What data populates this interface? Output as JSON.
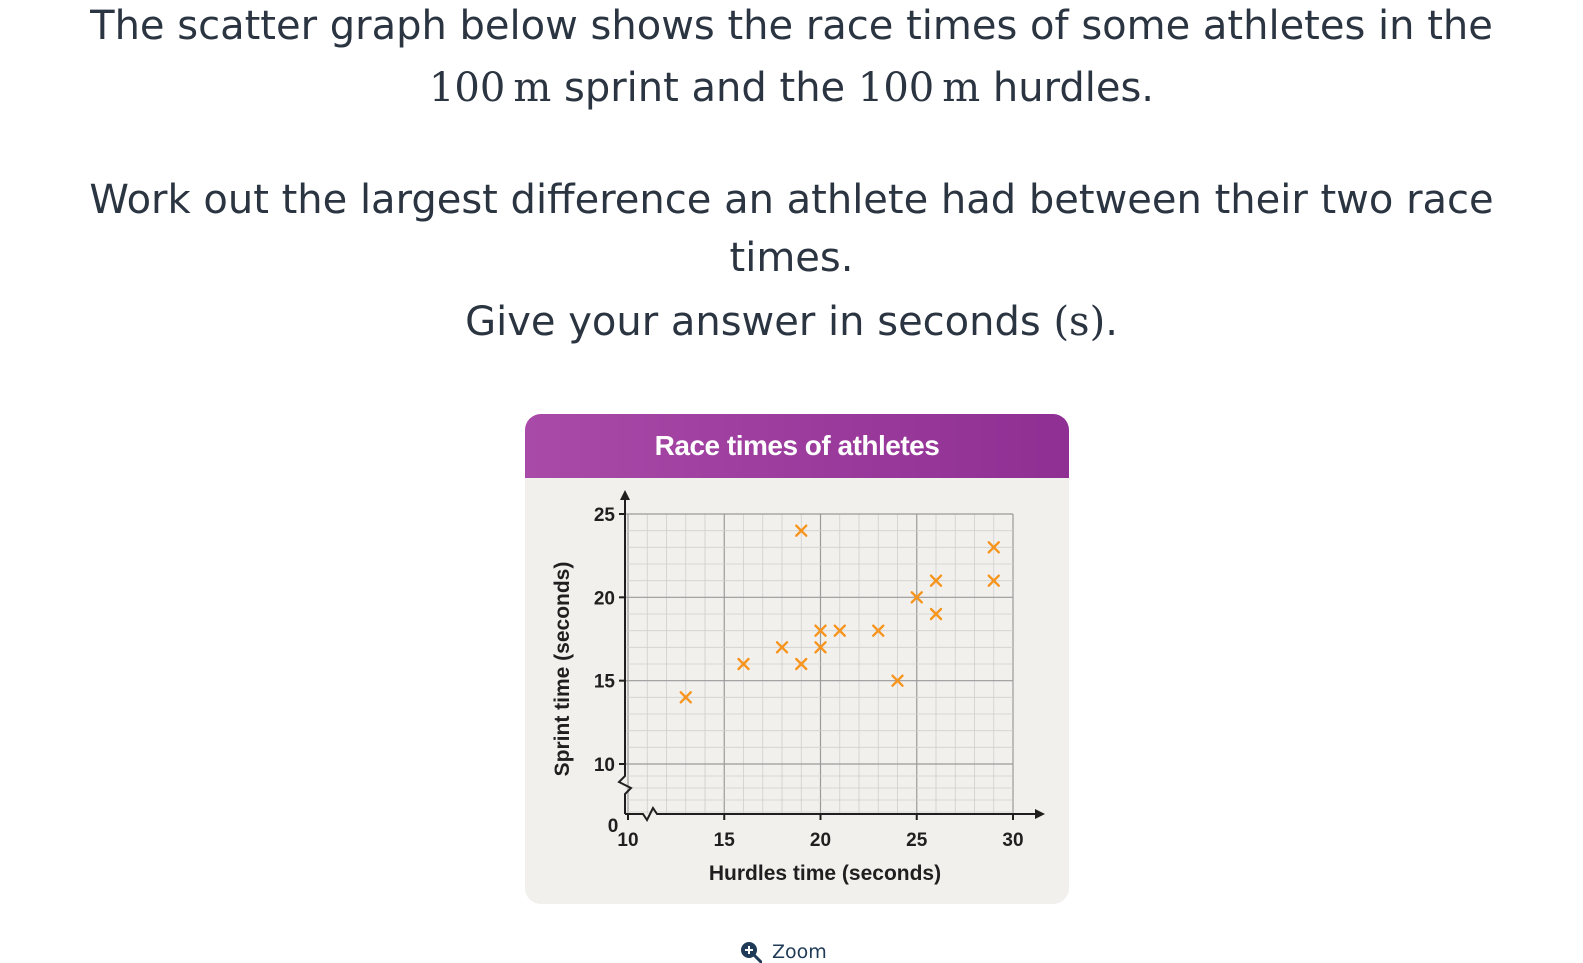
{
  "question": {
    "line1": "The scatter graph below shows the race times of some athletes in the",
    "line2_num_a": "100",
    "line2_unit_a": "m",
    "line2_mid": " sprint and the ",
    "line2_num_b": "100",
    "line2_unit_b": "m",
    "line2_end": " hurdles.",
    "line3": "Work out the largest difference an athlete had between their two race",
    "line4": "times.",
    "line5_pre": "Give your answer in seconds ",
    "line5_unit": "(s)",
    "line5_post": "."
  },
  "zoom": {
    "label": "Zoom",
    "icon": "zoom-in-icon"
  },
  "colors": {
    "header": "#9c3b9e",
    "marker": "#f7941d",
    "card_bg": "#f2f0ec"
  },
  "chart_data": {
    "type": "scatter",
    "title": "Race times of athletes",
    "xlabel": "Hurdles time (seconds)",
    "ylabel": "Sprint time (seconds)",
    "x_ticks": [
      10,
      15,
      20,
      25,
      30
    ],
    "y_ticks": [
      10,
      15,
      20,
      25
    ],
    "origin_label": "0",
    "xlim": [
      10,
      30
    ],
    "ylim": [
      10,
      25
    ],
    "axis_breaks": [
      "x",
      "y"
    ],
    "grid": true,
    "marker": "cross",
    "points": [
      {
        "x": 13,
        "y": 14
      },
      {
        "x": 16,
        "y": 16
      },
      {
        "x": 18,
        "y": 17
      },
      {
        "x": 19,
        "y": 16
      },
      {
        "x": 19,
        "y": 24
      },
      {
        "x": 20,
        "y": 17
      },
      {
        "x": 20,
        "y": 18
      },
      {
        "x": 21,
        "y": 18
      },
      {
        "x": 23,
        "y": 18
      },
      {
        "x": 24,
        "y": 15
      },
      {
        "x": 25,
        "y": 20
      },
      {
        "x": 26,
        "y": 21
      },
      {
        "x": 26,
        "y": 19
      },
      {
        "x": 29,
        "y": 23
      },
      {
        "x": 29,
        "y": 21
      }
    ]
  }
}
